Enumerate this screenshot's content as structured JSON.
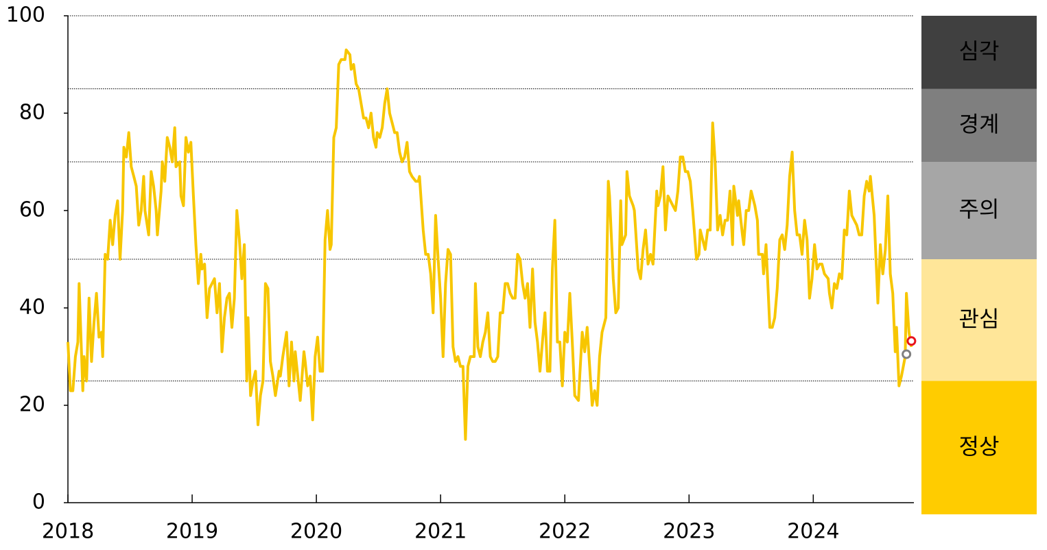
{
  "chart_data": {
    "type": "line",
    "xlim": [
      2018,
      2024.81
    ],
    "xticks": [
      2018,
      2019,
      2020,
      2021,
      2022,
      2023,
      2024
    ],
    "ylim": [
      0,
      100
    ],
    "yticks": [
      0,
      20,
      40,
      60,
      80,
      100
    ],
    "series": [
      {
        "color": "#f7c600",
        "x": [
          2018.0,
          2018.02,
          2018.04,
          2018.06,
          2018.08,
          2018.09,
          2018.12,
          2018.13,
          2018.15,
          2018.17,
          2018.19,
          2018.21,
          2018.23,
          2018.25,
          2018.27,
          2018.28,
          2018.3,
          2018.32,
          2018.34,
          2018.36,
          2018.38,
          2018.4,
          2018.42,
          2018.44,
          2018.45,
          2018.47,
          2018.49,
          2018.51,
          2018.53,
          2018.55,
          2018.57,
          2018.59,
          2018.61,
          2018.62,
          2018.65,
          2018.67,
          2018.69,
          2018.71,
          2018.72,
          2018.75,
          2018.76,
          2018.78,
          2018.8,
          2018.82,
          2018.84,
          2018.86,
          2018.87,
          2018.9,
          2018.91,
          2018.93,
          2018.95,
          2018.97,
          2018.99,
          2019.01,
          2019.03,
          2019.05,
          2019.07,
          2019.08,
          2019.1,
          2019.12,
          2019.14,
          2019.16,
          2019.18,
          2019.2,
          2019.22,
          2019.24,
          2019.26,
          2019.28,
          2019.3,
          2019.32,
          2019.34,
          2019.36,
          2019.38,
          2019.4,
          2019.42,
          2019.44,
          2019.45,
          2019.47,
          2019.49,
          2019.51,
          2019.53,
          2019.55,
          2019.57,
          2019.59,
          2019.61,
          2019.63,
          2019.65,
          2019.67,
          2019.7,
          2019.71,
          2019.73,
          2019.76,
          2019.78,
          2019.8,
          2019.82,
          2019.83,
          2019.85,
          2019.87,
          2019.9,
          2019.91,
          2019.93,
          2019.95,
          2019.97,
          2019.99,
          2020.01,
          2020.03,
          2020.05,
          2020.07,
          2020.09,
          2020.11,
          2020.12,
          2020.14,
          2020.16,
          2020.18,
          2020.2,
          2020.23,
          2020.24,
          2020.27,
          2020.28,
          2020.3,
          2020.32,
          2020.34,
          2020.36,
          2020.38,
          2020.4,
          2020.42,
          2020.44,
          2020.46,
          2020.48,
          2020.49,
          2020.51,
          2020.53,
          2020.55,
          2020.57,
          2020.59,
          2020.61,
          2020.63,
          2020.65,
          2020.67,
          2020.69,
          2020.71,
          2020.73,
          2020.75,
          2020.77,
          2020.8,
          2020.82,
          2020.83,
          2020.86,
          2020.88,
          2020.9,
          2020.92,
          2020.94,
          2020.96,
          2020.98,
          2021.0,
          2021.02,
          2021.04,
          2021.06,
          2021.08,
          2021.1,
          2021.12,
          2021.14,
          2021.16,
          2021.18,
          2021.2,
          2021.22,
          2021.24,
          2021.27,
          2021.28,
          2021.3,
          2021.32,
          2021.34,
          2021.36,
          2021.38,
          2021.4,
          2021.42,
          2021.44,
          2021.46,
          2021.48,
          2021.5,
          2021.52,
          2021.54,
          2021.56,
          2021.58,
          2021.6,
          2021.62,
          2021.64,
          2021.66,
          2021.68,
          2021.7,
          2021.72,
          2021.74,
          2021.76,
          2021.78,
          2021.8,
          2021.82,
          2021.84,
          2021.86,
          2021.88,
          2021.9,
          2021.92,
          2021.94,
          2021.96,
          2021.98,
          2022.0,
          2022.02,
          2022.04,
          2022.06,
          2022.08,
          2022.11,
          2022.12,
          2022.14,
          2022.16,
          2022.18,
          2022.2,
          2022.22,
          2022.24,
          2022.26,
          2022.28,
          2022.3,
          2022.33,
          2022.35,
          2022.36,
          2022.39,
          2022.41,
          2022.43,
          2022.45,
          2022.46,
          2022.49,
          2022.5,
          2022.52,
          2022.55,
          2022.56,
          2022.59,
          2022.61,
          2022.63,
          2022.65,
          2022.67,
          2022.69,
          2022.71,
          2022.74,
          2022.75,
          2022.77,
          2022.79,
          2022.81,
          2022.83,
          2022.85,
          2022.87,
          2022.89,
          2022.91,
          2022.93,
          2022.95,
          2022.97,
          2022.99,
          2023.01,
          2023.03,
          2023.06,
          2023.08,
          2023.09,
          2023.12,
          2023.13,
          2023.15,
          2023.17,
          2023.19,
          2023.21,
          2023.23,
          2023.25,
          2023.27,
          2023.29,
          2023.31,
          2023.33,
          2023.35,
          2023.36,
          2023.39,
          2023.4,
          2023.43,
          2023.44,
          2023.46,
          2023.48,
          2023.5,
          2023.53,
          2023.55,
          2023.56,
          2023.59,
          2023.6,
          2023.62,
          2023.65,
          2023.67,
          2023.69,
          2023.71,
          2023.73,
          2023.75,
          2023.77,
          2023.79,
          2023.81,
          2023.83,
          2023.85,
          2023.87,
          2023.89,
          2023.91,
          2023.93,
          2023.95,
          2023.97,
          2023.99,
          2024.01,
          2024.03,
          2024.05,
          2024.07,
          2024.09,
          2024.12,
          2024.13,
          2024.15,
          2024.17,
          2024.19,
          2024.21,
          2024.23,
          2024.25,
          2024.27,
          2024.29,
          2024.31,
          2024.33,
          2024.35,
          2024.37,
          2024.39,
          2024.41,
          2024.43,
          2024.45,
          2024.46,
          2024.49,
          2024.5,
          2024.52,
          2024.54,
          2024.56,
          2024.58,
          2024.6,
          2024.62,
          2024.64,
          2024.66,
          2024.67,
          2024.69,
          2024.71,
          2024.74,
          2024.75,
          2024.77,
          2024.79
        ],
        "values": [
          33,
          23,
          23,
          30,
          33,
          45,
          23,
          30,
          25,
          42,
          29,
          37,
          43,
          34,
          35,
          30,
          51,
          50,
          58,
          53,
          59,
          62,
          50,
          60,
          73,
          71,
          76,
          69,
          67,
          65,
          57,
          60,
          67,
          60,
          55,
          68,
          65,
          60,
          55,
          64,
          70,
          66,
          75,
          73,
          70,
          77,
          69,
          70,
          63,
          61,
          75,
          72,
          74,
          63,
          53,
          45,
          51,
          48,
          49,
          38,
          44,
          45,
          46,
          39,
          45,
          31,
          38,
          42,
          43,
          36,
          42,
          60,
          54,
          46,
          53,
          25,
          38,
          22,
          25,
          27,
          16,
          22,
          25,
          45,
          44,
          29,
          26,
          22,
          27,
          26,
          30,
          35,
          24,
          33,
          25,
          31,
          26,
          21,
          31,
          29,
          24,
          26,
          17,
          30,
          34,
          27,
          27,
          54,
          60,
          52,
          53,
          75,
          77,
          90,
          91,
          91,
          93,
          92,
          89,
          90,
          86,
          85,
          82,
          79,
          79,
          77,
          80,
          75,
          73,
          76,
          75,
          77,
          82,
          85,
          80,
          78,
          76,
          76,
          72,
          70,
          71,
          74,
          68,
          67,
          66,
          66,
          67,
          56,
          51,
          51,
          47,
          39,
          59,
          50,
          42,
          30,
          45,
          52,
          51,
          32,
          29,
          30,
          28,
          28,
          13,
          28,
          30,
          30,
          45,
          32,
          30,
          33,
          35,
          39,
          30,
          29,
          29,
          30,
          39,
          39,
          45,
          45,
          43,
          42,
          42,
          51,
          50,
          45,
          42,
          45,
          36,
          48,
          37,
          33,
          27,
          33,
          39,
          27,
          27,
          48,
          58,
          33,
          33,
          24,
          35,
          33,
          43,
          33,
          22,
          21,
          26,
          35,
          31,
          36,
          28,
          20,
          23,
          20,
          30,
          35,
          38,
          66,
          63,
          46,
          39,
          40,
          62,
          53,
          55,
          68,
          63,
          61,
          60,
          48,
          46,
          52,
          56,
          49,
          51,
          49,
          64,
          61,
          63,
          69,
          56,
          63,
          62,
          61,
          60,
          64,
          71,
          71,
          68,
          68,
          66,
          60,
          50,
          51,
          56,
          53,
          52,
          56,
          56,
          78,
          70,
          56,
          59,
          55,
          58,
          58,
          64,
          53,
          65,
          59,
          62,
          55,
          53,
          60,
          60,
          64,
          61,
          58,
          51,
          51,
          47,
          53,
          36,
          36,
          38,
          44,
          54,
          55,
          52,
          57,
          67,
          72,
          60,
          55,
          55,
          51,
          58,
          54,
          42,
          46,
          53,
          48,
          49,
          49,
          47,
          46,
          43,
          40,
          45,
          44,
          47,
          46,
          56,
          55,
          64,
          59,
          58,
          57,
          55,
          55,
          63,
          66,
          64,
          67,
          59,
          53,
          41,
          53,
          47,
          52,
          63,
          47,
          43,
          31,
          36,
          24,
          26,
          30,
          43,
          35,
          32
        ]
      }
    ],
    "points": [
      {
        "x": 2024.75,
        "value": 30.5,
        "color": "#808080"
      },
      {
        "x": 2024.79,
        "value": 33.2,
        "color": "#e8141c"
      }
    ],
    "bands": [
      {
        "label": "정상",
        "range": [
          0,
          25
        ],
        "color": "#ffcc00",
        "text_color": "#000000"
      },
      {
        "label": "관심",
        "range": [
          25,
          50
        ],
        "color": "#ffe699",
        "text_color": "#000000"
      },
      {
        "label": "주의",
        "range": [
          50,
          70
        ],
        "color": "#a6a6a6",
        "text_color": "#000000"
      },
      {
        "label": "경계",
        "range": [
          70,
          85
        ],
        "color": "#7f7f7f",
        "text_color": "#ffffff"
      },
      {
        "label": "심각",
        "range": [
          85,
          100
        ],
        "color": "#404040",
        "text_color": "#ffffff"
      }
    ]
  }
}
